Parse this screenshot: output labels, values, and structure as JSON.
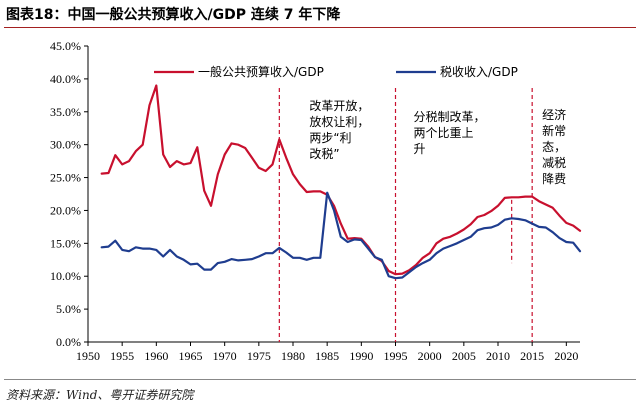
{
  "figure": {
    "title": "图表18：中国一般公共预算收入/GDP 连续 7 年下降",
    "source": "资料来源：Wind、粤开证券研究院"
  },
  "chart_data": {
    "type": "line",
    "ylim": [
      0,
      45
    ],
    "xlim": [
      1950,
      2022
    ],
    "y_ticks": [
      "0.0%",
      "5.0%",
      "10.0%",
      "15.0%",
      "20.0%",
      "25.0%",
      "30.0%",
      "35.0%",
      "40.0%",
      "45.0%"
    ],
    "x_ticks": [
      "1950",
      "1955",
      "1960",
      "1965",
      "1970",
      "1975",
      "1980",
      "1985",
      "1990",
      "1995",
      "2000",
      "2005",
      "2010",
      "2015",
      "2020"
    ],
    "legend_position": "top",
    "grid": false,
    "series": [
      {
        "name": "一般公共预算收入/GDP",
        "color": "#c8102e",
        "x": [
          1952,
          1953,
          1954,
          1955,
          1956,
          1957,
          1958,
          1959,
          1960,
          1961,
          1962,
          1963,
          1964,
          1965,
          1966,
          1967,
          1968,
          1969,
          1970,
          1971,
          1972,
          1973,
          1974,
          1975,
          1976,
          1977,
          1978,
          1979,
          1980,
          1981,
          1982,
          1983,
          1984,
          1985,
          1986,
          1987,
          1988,
          1989,
          1990,
          1991,
          1992,
          1993,
          1994,
          1995,
          1996,
          1997,
          1998,
          1999,
          2000,
          2001,
          2002,
          2003,
          2004,
          2005,
          2006,
          2007,
          2008,
          2009,
          2010,
          2011,
          2012,
          2013,
          2014,
          2015,
          2016,
          2017,
          2018,
          2019,
          2020,
          2021,
          2022
        ],
        "values": [
          25.6,
          25.7,
          28.4,
          27.0,
          27.5,
          29.0,
          30.0,
          36.0,
          39.0,
          28.5,
          26.6,
          27.5,
          27.0,
          27.2,
          29.6,
          23.0,
          20.7,
          25.5,
          28.5,
          30.2,
          30.0,
          29.5,
          28.0,
          26.5,
          26.0,
          27.0,
          30.8,
          28.0,
          25.5,
          24.0,
          22.8,
          22.9,
          22.9,
          22.4,
          20.7,
          18.0,
          15.7,
          15.8,
          15.7,
          14.5,
          12.9,
          12.3,
          10.8,
          10.3,
          10.4,
          10.9,
          11.7,
          12.8,
          13.5,
          15.0,
          15.7,
          16.0,
          16.5,
          17.1,
          17.9,
          19.0,
          19.3,
          19.9,
          20.7,
          21.9,
          22.0,
          22.0,
          22.1,
          22.1,
          21.4,
          20.9,
          20.4,
          19.2,
          18.1,
          17.7,
          16.9
        ]
      },
      {
        "name": "税收收入/GDP",
        "color": "#1f3d8f",
        "x": [
          1952,
          1953,
          1954,
          1955,
          1956,
          1957,
          1958,
          1959,
          1960,
          1961,
          1962,
          1963,
          1964,
          1965,
          1966,
          1967,
          1968,
          1969,
          1970,
          1971,
          1972,
          1973,
          1974,
          1975,
          1976,
          1977,
          1978,
          1979,
          1980,
          1981,
          1982,
          1983,
          1984,
          1985,
          1986,
          1987,
          1988,
          1989,
          1990,
          1991,
          1992,
          1993,
          1994,
          1995,
          1996,
          1997,
          1998,
          1999,
          2000,
          2001,
          2002,
          2003,
          2004,
          2005,
          2006,
          2007,
          2008,
          2009,
          2010,
          2011,
          2012,
          2013,
          2014,
          2015,
          2016,
          2017,
          2018,
          2019,
          2020,
          2021,
          2022
        ],
        "values": [
          14.4,
          14.5,
          15.4,
          14.0,
          13.8,
          14.4,
          14.2,
          14.2,
          14.0,
          13.0,
          14.0,
          13.0,
          12.5,
          11.8,
          11.9,
          11.0,
          11.0,
          12.0,
          12.2,
          12.6,
          12.4,
          12.5,
          12.6,
          13.0,
          13.5,
          13.5,
          14.3,
          13.6,
          12.8,
          12.8,
          12.5,
          12.8,
          12.8,
          22.7,
          20.0,
          16.0,
          15.2,
          15.6,
          15.5,
          14.2,
          12.9,
          12.5,
          10.0,
          9.7,
          9.8,
          10.6,
          11.4,
          12.0,
          12.5,
          13.5,
          14.2,
          14.6,
          15.0,
          15.5,
          16.0,
          17.0,
          17.3,
          17.4,
          17.8,
          18.6,
          18.8,
          18.7,
          18.5,
          18.0,
          17.5,
          17.4,
          16.7,
          15.8,
          15.2,
          15.1,
          13.8
        ]
      }
    ],
    "events": [
      {
        "x": 1978,
        "label": [
          "改革开放，",
          "放权让利，",
          "两步“利",
          "改税”"
        ]
      },
      {
        "x": 1995,
        "label": [
          "分税制改革，",
          "两个比重上",
          "升"
        ]
      },
      {
        "x": 2015,
        "label": [
          "经济",
          "新常",
          "态，",
          "减税",
          "降费"
        ]
      }
    ],
    "marker_line": {
      "x": 2012
    }
  }
}
